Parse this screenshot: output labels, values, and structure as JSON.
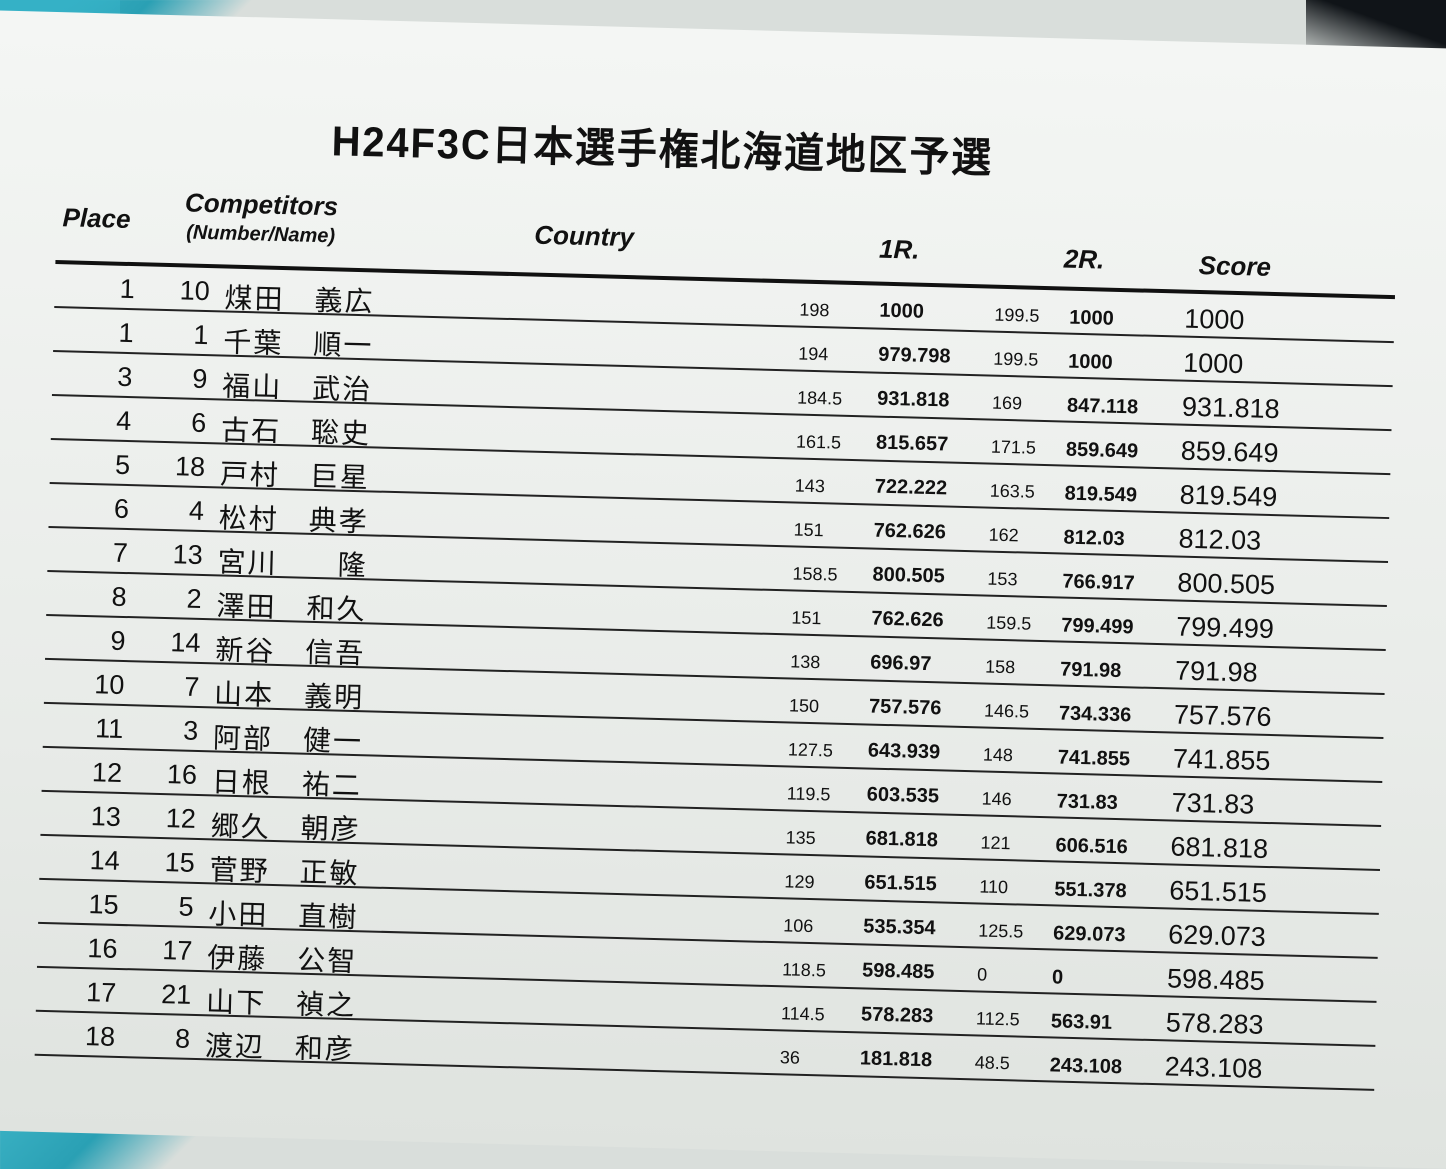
{
  "title": "H24F3C日本選手権北海道地区予選",
  "headers": {
    "place": "Place",
    "competitors": "Competitors",
    "competitors_sub": "(Number/Name)",
    "country": "Country",
    "round1": "1R.",
    "round2": "2R.",
    "score": "Score"
  },
  "rows": [
    {
      "place": "1",
      "number": "10",
      "name": "煤田　義広",
      "r1_raw": "198",
      "r1": "1000",
      "r2_raw": "199.5",
      "r2": "1000",
      "score": "1000"
    },
    {
      "place": "1",
      "number": "1",
      "name": "千葉　順一",
      "r1_raw": "194",
      "r1": "979.798",
      "r2_raw": "199.5",
      "r2": "1000",
      "score": "1000"
    },
    {
      "place": "3",
      "number": "9",
      "name": "福山　武治",
      "r1_raw": "184.5",
      "r1": "931.818",
      "r2_raw": "169",
      "r2": "847.118",
      "score": "931.818"
    },
    {
      "place": "4",
      "number": "6",
      "name": "古石　聡史",
      "r1_raw": "161.5",
      "r1": "815.657",
      "r2_raw": "171.5",
      "r2": "859.649",
      "score": "859.649"
    },
    {
      "place": "5",
      "number": "18",
      "name": "戸村　巨星",
      "r1_raw": "143",
      "r1": "722.222",
      "r2_raw": "163.5",
      "r2": "819.549",
      "score": "819.549"
    },
    {
      "place": "6",
      "number": "4",
      "name": "松村　典孝",
      "r1_raw": "151",
      "r1": "762.626",
      "r2_raw": "162",
      "r2": "812.03",
      "score": "812.03"
    },
    {
      "place": "7",
      "number": "13",
      "name": "宮川　　隆",
      "r1_raw": "158.5",
      "r1": "800.505",
      "r2_raw": "153",
      "r2": "766.917",
      "score": "800.505"
    },
    {
      "place": "8",
      "number": "2",
      "name": "澤田　和久",
      "r1_raw": "151",
      "r1": "762.626",
      "r2_raw": "159.5",
      "r2": "799.499",
      "score": "799.499"
    },
    {
      "place": "9",
      "number": "14",
      "name": "新谷　信吾",
      "r1_raw": "138",
      "r1": "696.97",
      "r2_raw": "158",
      "r2": "791.98",
      "score": "791.98"
    },
    {
      "place": "10",
      "number": "7",
      "name": "山本　義明",
      "r1_raw": "150",
      "r1": "757.576",
      "r2_raw": "146.5",
      "r2": "734.336",
      "score": "757.576"
    },
    {
      "place": "11",
      "number": "3",
      "name": "阿部　健一",
      "r1_raw": "127.5",
      "r1": "643.939",
      "r2_raw": "148",
      "r2": "741.855",
      "score": "741.855"
    },
    {
      "place": "12",
      "number": "16",
      "name": "日根　祐二",
      "r1_raw": "119.5",
      "r1": "603.535",
      "r2_raw": "146",
      "r2": "731.83",
      "score": "731.83"
    },
    {
      "place": "13",
      "number": "12",
      "name": "郷久　朝彦",
      "r1_raw": "135",
      "r1": "681.818",
      "r2_raw": "121",
      "r2": "606.516",
      "score": "681.818"
    },
    {
      "place": "14",
      "number": "15",
      "name": "菅野　正敏",
      "r1_raw": "129",
      "r1": "651.515",
      "r2_raw": "110",
      "r2": "551.378",
      "score": "651.515"
    },
    {
      "place": "15",
      "number": "5",
      "name": "小田　直樹",
      "r1_raw": "106",
      "r1": "535.354",
      "r2_raw": "125.5",
      "r2": "629.073",
      "score": "629.073"
    },
    {
      "place": "16",
      "number": "17",
      "name": "伊藤　公智",
      "r1_raw": "118.5",
      "r1": "598.485",
      "r2_raw": "0",
      "r2": "0",
      "score": "598.485"
    },
    {
      "place": "17",
      "number": "21",
      "name": "山下　禎之",
      "r1_raw": "114.5",
      "r1": "578.283",
      "r2_raw": "112.5",
      "r2": "563.91",
      "score": "578.283"
    },
    {
      "place": "18",
      "number": "8",
      "name": "渡辺　和彦",
      "r1_raw": "36",
      "r1": "181.818",
      "r2_raw": "48.5",
      "r2": "243.108",
      "score": "243.108"
    }
  ]
}
